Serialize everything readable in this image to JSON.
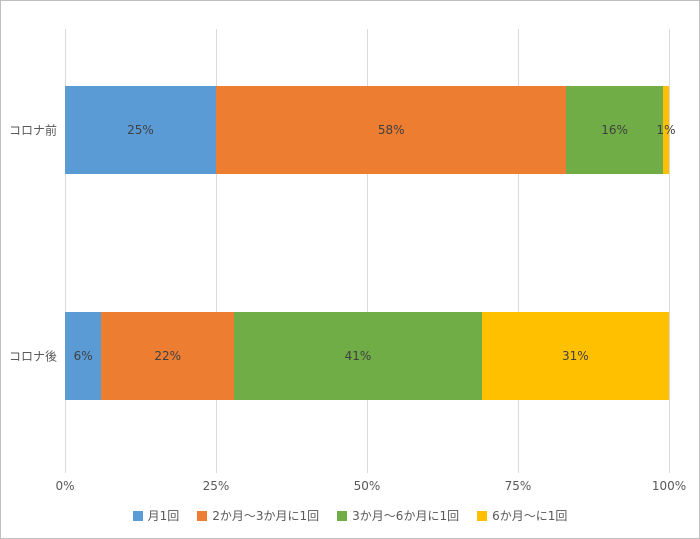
{
  "chart_data": {
    "type": "bar",
    "orientation": "horizontal",
    "stacked": true,
    "title": "",
    "xlabel": "",
    "ylabel": "",
    "xlim": [
      0,
      100
    ],
    "grid": true,
    "legend_position": "bottom",
    "categories": [
      "コロナ前",
      "コロナ後"
    ],
    "x_ticks": [
      {
        "value": 0,
        "label": "0%"
      },
      {
        "value": 25,
        "label": "25%"
      },
      {
        "value": 50,
        "label": "50%"
      },
      {
        "value": 75,
        "label": "75%"
      },
      {
        "value": 100,
        "label": "100%"
      }
    ],
    "series": [
      {
        "name": "月1回",
        "color": "#5b9bd5",
        "values": [
          25,
          6
        ],
        "labels": [
          "25%",
          "6%"
        ]
      },
      {
        "name": "2か月〜3か月に1回",
        "color": "#ed7d31",
        "values": [
          58,
          22
        ],
        "labels": [
          "58%",
          "22%"
        ]
      },
      {
        "name": "3か月〜6か月に1回",
        "color": "#70ad47",
        "values": [
          16,
          41
        ],
        "labels": [
          "16%",
          "41%"
        ]
      },
      {
        "name": "6か月〜に1回",
        "color": "#ffc000",
        "values": [
          1,
          31
        ],
        "labels": [
          "1%",
          "31%"
        ]
      }
    ]
  },
  "colors": {
    "gridline": "#d9d9d9",
    "axis_text": "#595959",
    "data_label": "#404040",
    "frame_border": "#bfbfbf"
  }
}
